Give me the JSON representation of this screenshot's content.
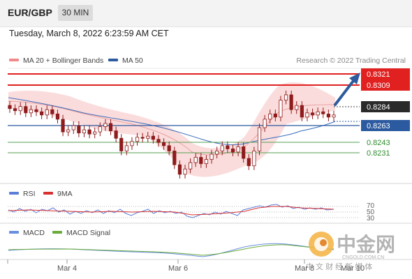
{
  "header": {
    "symbol": "EUR/GBP",
    "timeframe": "30 MIN",
    "datetime": "Tuesday, March 8, 2022 6:23:59 AM CET"
  },
  "legend": {
    "ma20_label": "MA 20 + Bollinger Bands",
    "ma50_label": "MA 50",
    "research": "Research © 2022 Trading Central"
  },
  "colors": {
    "candle": "#8f1c1c",
    "resistance": "#e12020",
    "support": "#2c5aa0",
    "target_line": "#55a055",
    "bollinger_fill": "#fbdcdc",
    "ma20": "#e89a9a",
    "ma50": "#3a6dbb",
    "rsi": "#5b7fd8",
    "rsi_ma": "#d83030",
    "macd": "#6a8fe0",
    "macd_signal": "#6aab3c",
    "arrow": "#2d5b9e"
  },
  "levels": [
    {
      "value": "0.8321",
      "style": "resistance",
      "color": "#e12020"
    },
    {
      "value": "0.8309",
      "style": "resistance",
      "color": "#e12020"
    },
    {
      "value": "0.8284",
      "style": "last",
      "color": "#2a2a2a"
    },
    {
      "value": "0.8263",
      "style": "support",
      "color": "#2c5aa0"
    },
    {
      "value": "0.8243",
      "style": "target",
      "color": "#2e8b2e"
    },
    {
      "value": "0.8231",
      "style": "target",
      "color": "#2e8b2e"
    }
  ],
  "rsi_panel": {
    "rsi_label": "RSI",
    "ma_label": "9MA",
    "levels": [
      "70",
      "50",
      "30"
    ]
  },
  "macd_panel": {
    "macd_label": "MACD",
    "signal_label": "MACD Signal"
  },
  "x_axis": {
    "ticks": [
      "Mar 4",
      "Mar 6",
      "Mar 8",
      "Mar 10"
    ]
  },
  "watermark": {
    "brand": "中金网",
    "url": "CNGOLD.COM.CN",
    "tagline": "中 文 财 经 新 媒 体"
  },
  "chart_data": {
    "type": "candlestick",
    "series": [
      {
        "name": "EUR/GBP",
        "close": [
          0.829,
          0.8288,
          0.8292,
          0.8286,
          0.8289,
          0.8287,
          0.8284,
          0.8289,
          0.8285,
          0.828,
          0.8268,
          0.827,
          0.8274,
          0.8267,
          0.827,
          0.8266,
          0.8268,
          0.8273,
          0.8276,
          0.8269,
          0.8262,
          0.825,
          0.8255,
          0.8259,
          0.8263,
          0.8262,
          0.8264,
          0.8261,
          0.8258,
          0.8255,
          0.825,
          0.8237,
          0.8228,
          0.8233,
          0.8239,
          0.8244,
          0.8238,
          0.8242,
          0.8247,
          0.825,
          0.8255,
          0.8252,
          0.8249,
          0.8254,
          0.8243,
          0.8236,
          0.825,
          0.8272,
          0.828,
          0.8285,
          0.8282,
          0.8298,
          0.8303,
          0.8289,
          0.8293,
          0.8282,
          0.8286,
          0.8284,
          0.8287,
          0.8285,
          0.8282,
          0.8284
        ]
      },
      {
        "name": "MA 20",
        "values": [
          0.8285,
          0.8284,
          0.8283,
          0.8281,
          0.8279,
          0.8276,
          0.8273,
          0.8271,
          0.8268,
          0.8266,
          0.8262,
          0.8258,
          0.8255,
          0.8251,
          0.8249,
          0.8247,
          0.8247,
          0.8248,
          0.825,
          0.8254,
          0.8258,
          0.8263,
          0.8268,
          0.8273,
          0.8277,
          0.828,
          0.8283
        ]
      },
      {
        "name": "MA 50",
        "values": [
          0.8288,
          0.8287,
          0.8285,
          0.8283,
          0.8279,
          0.8275,
          0.8272,
          0.8269,
          0.8266,
          0.8264,
          0.8263,
          0.8262,
          0.8261,
          0.8259,
          0.8256,
          0.8253,
          0.8251,
          0.825,
          0.8251,
          0.8253,
          0.8256,
          0.8259,
          0.8262,
          0.8265
        ]
      }
    ],
    "x_ticks": [
      "Mar 4",
      "Mar 6",
      "Mar 8",
      "Mar 10"
    ],
    "price_range": [
      0.822,
      0.8328
    ],
    "levels": [
      0.8321,
      0.8309,
      0.8284,
      0.8263,
      0.8243,
      0.8231
    ],
    "rsi_levels": [
      70,
      50,
      30
    ]
  }
}
